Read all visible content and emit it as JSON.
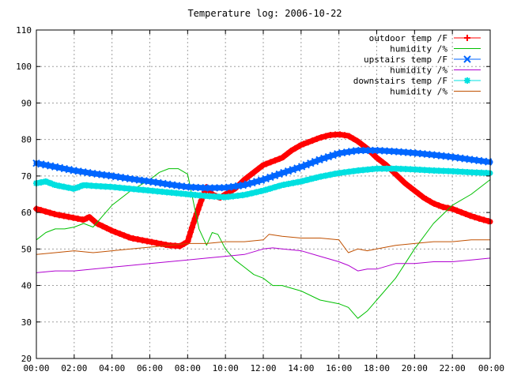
{
  "chart_data": {
    "type": "line",
    "title": "Temperature log: 2006-10-22",
    "xlabel": "",
    "ylabel": "",
    "ylim": [
      20,
      110
    ],
    "yticks": [
      20,
      30,
      40,
      50,
      60,
      70,
      80,
      90,
      100,
      110
    ],
    "xlim": [
      0,
      24
    ],
    "xticks": [
      "00:00",
      "02:00",
      "04:00",
      "06:00",
      "08:00",
      "10:00",
      "12:00",
      "14:00",
      "16:00",
      "18:00",
      "20:00",
      "22:00",
      "00:00"
    ],
    "grid": true,
    "legend_position": "top-right",
    "series": [
      {
        "name": "outdoor temp /F",
        "color": "#ff0000",
        "marker": "plus",
        "x": [
          0,
          1,
          2,
          2.5,
          2.8,
          3.2,
          4,
          5,
          6,
          7,
          7.6,
          8,
          8.3,
          8.7,
          9.0,
          9.3,
          9.7,
          10,
          10.5,
          11,
          11.5,
          12,
          12.5,
          13,
          13.5,
          14,
          14.5,
          15,
          15.5,
          16,
          16.5,
          17,
          17.5,
          18,
          18.5,
          19,
          19.5,
          20,
          20.5,
          21,
          21.5,
          22,
          22.5,
          23,
          23.5,
          24
        ],
        "y": [
          61,
          59.5,
          58.5,
          58,
          58.8,
          57,
          55,
          53,
          52,
          51,
          50.8,
          52,
          57,
          63,
          67,
          65,
          64,
          65,
          66.5,
          69,
          71,
          73,
          74,
          75,
          77,
          78.5,
          79.5,
          80.5,
          81.2,
          81.4,
          81,
          79.5,
          77.5,
          75,
          73,
          70.5,
          68,
          66,
          64,
          62.5,
          61.5,
          61,
          60,
          59,
          58.2,
          57.5
        ]
      },
      {
        "name": "humidity /%",
        "color": "#00c000",
        "marker": "none",
        "x": [
          0,
          0.5,
          1,
          1.5,
          2,
          2.5,
          3,
          3.5,
          4,
          5,
          6,
          6.5,
          7,
          7.5,
          8,
          8.3,
          8.6,
          9,
          9.3,
          9.6,
          10,
          10.5,
          11,
          11.5,
          12,
          12.5,
          13,
          14,
          15,
          16,
          16.5,
          17,
          17.5,
          18,
          19,
          20,
          21,
          22,
          23,
          24
        ],
        "y": [
          52.5,
          54.5,
          55.5,
          55.5,
          56,
          57,
          56,
          59,
          62,
          66,
          69,
          71,
          72,
          72,
          70.5,
          63,
          55.5,
          51,
          54.5,
          54,
          50,
          47,
          45,
          43,
          42,
          40,
          40,
          38.5,
          36,
          35,
          34,
          31,
          33,
          36,
          42,
          50,
          57,
          62,
          65,
          69
        ]
      },
      {
        "name": "upstairs temp /F",
        "color": "#0066ff",
        "marker": "cross",
        "x": [
          0,
          1,
          2,
          3,
          4,
          5,
          6,
          7,
          8,
          9,
          10,
          11,
          12,
          13,
          14,
          15,
          16,
          17,
          18,
          19,
          20,
          21,
          22,
          23,
          24
        ],
        "y": [
          73.5,
          72.5,
          71.5,
          70.7,
          70,
          69.2,
          68.5,
          67.7,
          67,
          66.7,
          66.8,
          67.5,
          69,
          70.8,
          72.5,
          74.5,
          76.2,
          77,
          77,
          76.7,
          76.3,
          75.8,
          75.2,
          74.5,
          73.8
        ]
      },
      {
        "name": "humidity /%",
        "color": "#b000d0",
        "marker": "none",
        "x": [
          0,
          1,
          2,
          3,
          4,
          5,
          6,
          7,
          8,
          9,
          10,
          11,
          12,
          12.5,
          13,
          14,
          15,
          16,
          16.5,
          17,
          17.5,
          18,
          19,
          20,
          21,
          22,
          23,
          24
        ],
        "y": [
          43.5,
          44,
          44,
          44.5,
          45,
          45.5,
          46,
          46.5,
          47,
          47.5,
          48,
          48.5,
          50,
          50.3,
          50,
          49.5,
          48,
          46.5,
          45.5,
          44,
          44.5,
          44.5,
          46,
          46,
          46.5,
          46.5,
          47,
          47.5
        ]
      },
      {
        "name": "downstairs temp /F",
        "color": "#00e0e0",
        "marker": "star",
        "x": [
          0,
          0.5,
          1,
          1.5,
          2,
          2.5,
          3,
          4,
          5,
          6,
          7,
          8,
          9,
          10,
          11,
          12,
          13,
          14,
          15,
          16,
          17,
          18,
          19,
          20,
          21,
          22,
          23,
          24
        ],
        "y": [
          68,
          68.5,
          67.5,
          67,
          66.5,
          67.5,
          67.3,
          67,
          66.5,
          66,
          65.5,
          65,
          64.5,
          64.2,
          64.8,
          66,
          67.5,
          68.5,
          69.8,
          70.8,
          71.5,
          72,
          72,
          71.8,
          71.5,
          71.3,
          71,
          70.8
        ]
      },
      {
        "name": "humidity /%",
        "color": "#c05000",
        "marker": "none",
        "x": [
          0,
          1,
          2,
          3,
          4,
          5,
          6,
          7,
          8,
          9,
          10,
          11,
          12,
          12.3,
          13,
          14,
          15,
          16,
          16.5,
          17,
          17.5,
          18,
          19,
          20,
          21,
          22,
          23,
          24
        ],
        "y": [
          48.5,
          49,
          49.5,
          49,
          49.5,
          50,
          50.5,
          51,
          51.5,
          51.5,
          52,
          52,
          52.5,
          54,
          53.5,
          53,
          53,
          52.5,
          49,
          50,
          49.5,
          50,
          51,
          51.5,
          52,
          52,
          52.5,
          52.5
        ]
      }
    ]
  }
}
